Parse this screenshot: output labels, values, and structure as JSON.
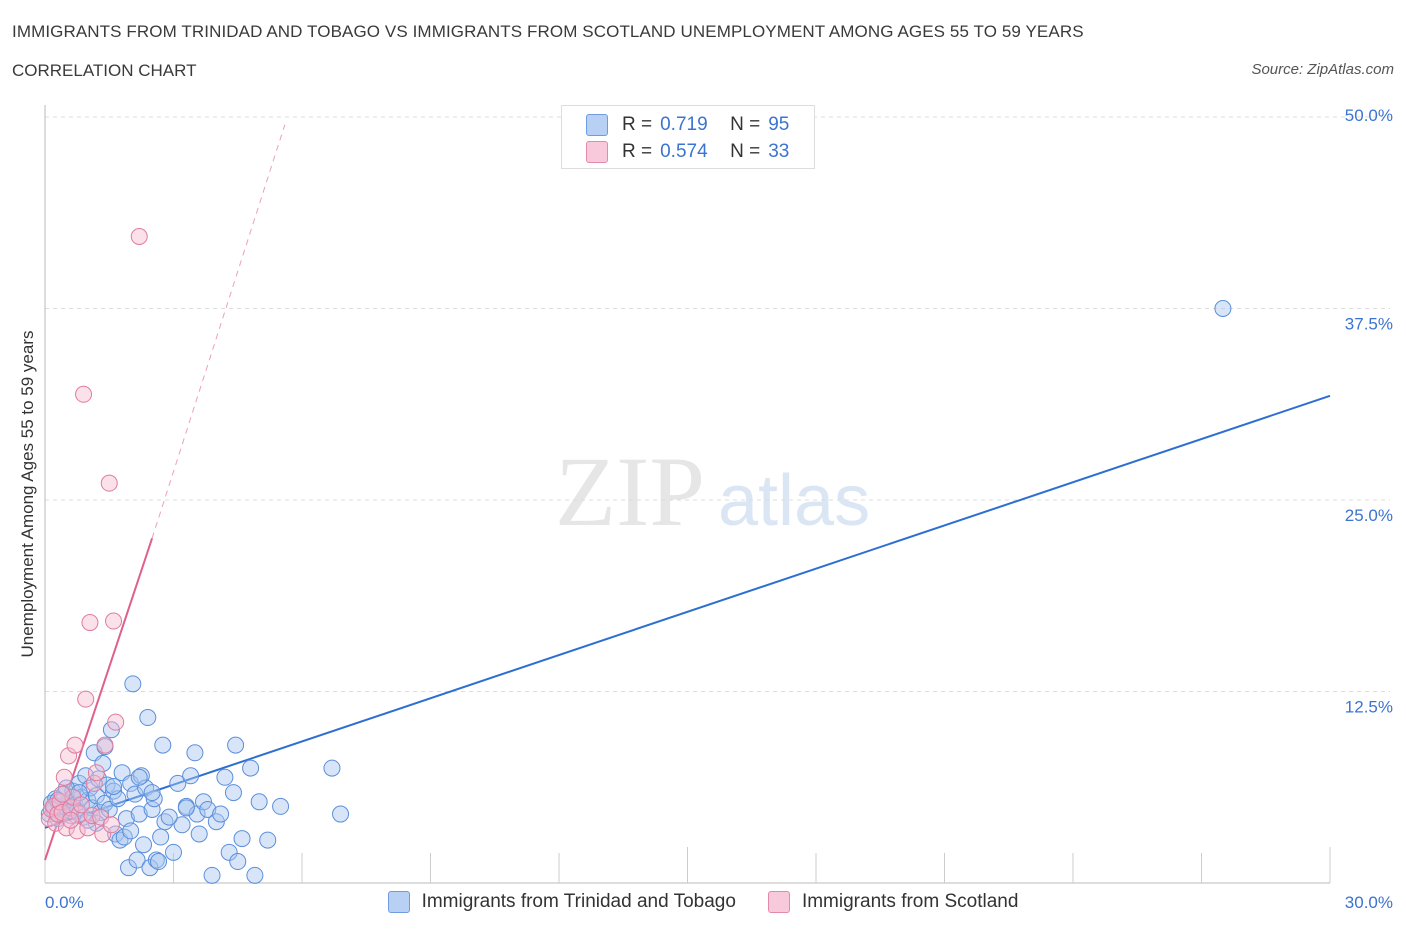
{
  "header": {
    "title": "IMMIGRANTS FROM TRINIDAD AND TOBAGO VS IMMIGRANTS FROM SCOTLAND UNEMPLOYMENT AMONG AGES 55 TO 59 YEARS",
    "subtitle": "CORRELATION CHART",
    "source": "Source: ZipAtlas.com"
  },
  "watermark": {
    "zip": "ZIP",
    "atlas": "atlas"
  },
  "legend": {
    "rows": [
      {
        "r_label": "R =",
        "r_value": "0.719",
        "n_label": "N =",
        "n_value": "95"
      },
      {
        "r_label": "R =",
        "r_value": "0.574",
        "n_label": "N =",
        "n_value": "33"
      }
    ]
  },
  "colors": {
    "blue_fill": "#a8c6f0",
    "blue_stroke": "#5a8fdc",
    "blue_line": "#2d6fd0",
    "pink_fill": "#f5bcd0",
    "pink_stroke": "#e07ca0",
    "pink_line": "#e0608c",
    "grid": "#dcdcdc",
    "tick_text": "#3b74d0"
  },
  "chart_data": {
    "type": "scatter",
    "title": "IMMIGRANTS FROM TRINIDAD AND TOBAGO VS IMMIGRANTS FROM SCOTLAND UNEMPLOYMENT AMONG AGES 55 TO 59 YEARS",
    "subtitle": "CORRELATION CHART",
    "ylabel": "Unemployment Among Ages 55 to 59 years",
    "xlabel": "",
    "xlim": [
      0,
      30
    ],
    "ylim": [
      0,
      50
    ],
    "x_tick_labels": [
      "0.0%",
      "30.0%"
    ],
    "y_tick_labels": [
      "12.5%",
      "25.0%",
      "37.5%",
      "50.0%"
    ],
    "y_ticks": [
      12.5,
      25,
      37.5,
      50
    ],
    "grid": true,
    "legend_position": "top-center",
    "series": [
      {
        "name": "Immigrants from Trinidad and Tobago",
        "color": "#a8c6f0",
        "trend": {
          "x": [
            0,
            30
          ],
          "y": [
            3.6,
            31.8
          ],
          "style": "solid"
        },
        "points": [
          [
            0.1,
            4.5
          ],
          [
            0.15,
            5.2
          ],
          [
            0.2,
            4.8
          ],
          [
            0.25,
            5.5
          ],
          [
            0.3,
            4.2
          ],
          [
            0.35,
            5.0
          ],
          [
            0.4,
            4.6
          ],
          [
            0.45,
            5.8
          ],
          [
            0.5,
            4.9
          ],
          [
            0.55,
            5.3
          ],
          [
            0.6,
            4.4
          ],
          [
            0.65,
            6.0
          ],
          [
            0.7,
            5.1
          ],
          [
            0.75,
            4.7
          ],
          [
            0.8,
            6.5
          ],
          [
            0.85,
            5.6
          ],
          [
            0.9,
            4.3
          ],
          [
            0.95,
            7.0
          ],
          [
            1.0,
            5.4
          ],
          [
            1.05,
            6.2
          ],
          [
            1.1,
            4.9
          ],
          [
            1.15,
            8.5
          ],
          [
            1.2,
            5.7
          ],
          [
            1.25,
            6.8
          ],
          [
            1.3,
            4.6
          ],
          [
            1.35,
            7.8
          ],
          [
            1.4,
            5.2
          ],
          [
            1.45,
            6.4
          ],
          [
            1.5,
            4.8
          ],
          [
            1.55,
            10.0
          ],
          [
            1.6,
            6.0
          ],
          [
            1.65,
            3.2
          ],
          [
            1.7,
            5.5
          ],
          [
            1.75,
            2.8
          ],
          [
            1.8,
            7.2
          ],
          [
            1.85,
            3.0
          ],
          [
            1.9,
            4.2
          ],
          [
            1.95,
            1.0
          ],
          [
            2.0,
            6.5
          ],
          [
            2.05,
            13.0
          ],
          [
            2.1,
            5.8
          ],
          [
            2.15,
            1.5
          ],
          [
            2.2,
            4.5
          ],
          [
            2.25,
            7.0
          ],
          [
            2.3,
            2.5
          ],
          [
            2.35,
            6.2
          ],
          [
            2.4,
            10.8
          ],
          [
            2.45,
            1.0
          ],
          [
            2.5,
            4.8
          ],
          [
            2.55,
            5.5
          ],
          [
            2.6,
            1.5
          ],
          [
            2.65,
            1.4
          ],
          [
            2.7,
            3.0
          ],
          [
            2.75,
            9.0
          ],
          [
            2.8,
            4.0
          ],
          [
            3.0,
            2.0
          ],
          [
            3.1,
            6.5
          ],
          [
            3.2,
            3.8
          ],
          [
            3.3,
            5.0
          ],
          [
            3.4,
            7.0
          ],
          [
            3.5,
            8.5
          ],
          [
            3.55,
            4.5
          ],
          [
            3.6,
            3.2
          ],
          [
            3.7,
            5.3
          ],
          [
            3.8,
            4.8
          ],
          [
            3.9,
            0.5
          ],
          [
            4.0,
            4.0
          ],
          [
            4.1,
            4.5
          ],
          [
            4.2,
            6.9
          ],
          [
            4.3,
            2.0
          ],
          [
            4.4,
            5.9
          ],
          [
            4.45,
            9.0
          ],
          [
            4.5,
            1.4
          ],
          [
            4.6,
            2.9
          ],
          [
            4.8,
            7.5
          ],
          [
            4.9,
            0.5
          ],
          [
            5.0,
            5.3
          ],
          [
            5.2,
            2.8
          ],
          [
            5.5,
            5.0
          ],
          [
            6.7,
            7.5
          ],
          [
            6.9,
            4.5
          ],
          [
            27.5,
            37.5
          ],
          [
            0.5,
            6.2
          ],
          [
            0.8,
            5.9
          ],
          [
            1.2,
            3.9
          ],
          [
            1.4,
            8.9
          ],
          [
            1.6,
            6.3
          ],
          [
            2.0,
            3.4
          ],
          [
            2.2,
            6.9
          ],
          [
            2.5,
            5.9
          ],
          [
            2.9,
            4.3
          ],
          [
            3.3,
            4.9
          ],
          [
            1.0,
            4.1
          ],
          [
            0.3,
            5.4
          ],
          [
            0.6,
            4.7
          ]
        ]
      },
      {
        "name": "Immigrants from Scotland",
        "color": "#f5bcd0",
        "trend": {
          "x": [
            0,
            2.5
          ],
          "y": [
            1.5,
            22.5
          ],
          "style": "solid",
          "extended_to": [
            5.6,
            49.5
          ],
          "extended_style": "dashed"
        },
        "points": [
          [
            0.1,
            4.2
          ],
          [
            0.15,
            4.8
          ],
          [
            0.2,
            5.0
          ],
          [
            0.25,
            3.9
          ],
          [
            0.3,
            4.5
          ],
          [
            0.35,
            5.3
          ],
          [
            0.4,
            4.6
          ],
          [
            0.45,
            6.9
          ],
          [
            0.5,
            3.6
          ],
          [
            0.55,
            8.3
          ],
          [
            0.6,
            4.9
          ],
          [
            0.65,
            5.6
          ],
          [
            0.7,
            9.0
          ],
          [
            0.75,
            3.4
          ],
          [
            0.8,
            4.5
          ],
          [
            0.85,
            5.1
          ],
          [
            0.9,
            31.9
          ],
          [
            0.95,
            12.0
          ],
          [
            1.0,
            3.6
          ],
          [
            1.05,
            17.0
          ],
          [
            1.1,
            4.4
          ],
          [
            1.15,
            6.5
          ],
          [
            1.2,
            7.2
          ],
          [
            1.3,
            4.3
          ],
          [
            1.35,
            3.2
          ],
          [
            1.4,
            9.0
          ],
          [
            1.5,
            26.1
          ],
          [
            1.55,
            3.8
          ],
          [
            1.6,
            17.1
          ],
          [
            1.65,
            10.5
          ],
          [
            2.2,
            42.2
          ],
          [
            0.4,
            5.8
          ],
          [
            0.6,
            4.1
          ]
        ]
      }
    ]
  },
  "bottom_legend": [
    {
      "label": "Immigrants from Trinidad and Tobago"
    },
    {
      "label": "Immigrants from Scotland"
    }
  ]
}
